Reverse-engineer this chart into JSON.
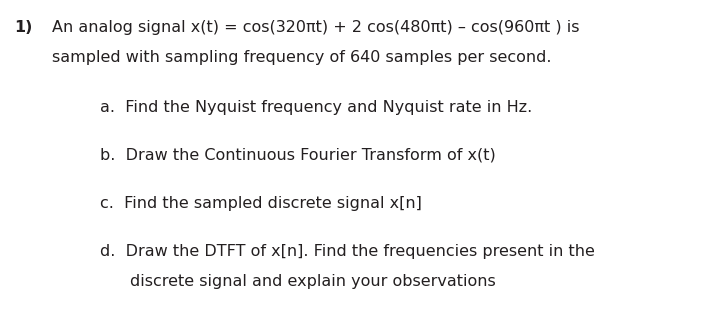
{
  "background_color": "#ffffff",
  "fig_width": 7.16,
  "fig_height": 3.33,
  "dpi": 100,
  "text_color": "#231f20",
  "number": "1)",
  "line1": "An analog signal x(t) = cos(320πt) + 2 cos(480πt) – cos(960πt ) is",
  "line2": "sampled with sampling frequency of 640 samples per second.",
  "item_a": "a.  Find the Nyquist frequency and Nyquist rate in Hz.",
  "item_b": "b.  Draw the Continuous Fourier Transform of x(t)",
  "item_c": "c.  Find the sampled discrete signal x[n]",
  "item_d1": "d.  Draw the DTFT of x[n]. Find the frequencies present in the",
  "item_d2": "discrete signal and explain your observations",
  "font_size": 11.5,
  "font_bold_size": 11.5
}
